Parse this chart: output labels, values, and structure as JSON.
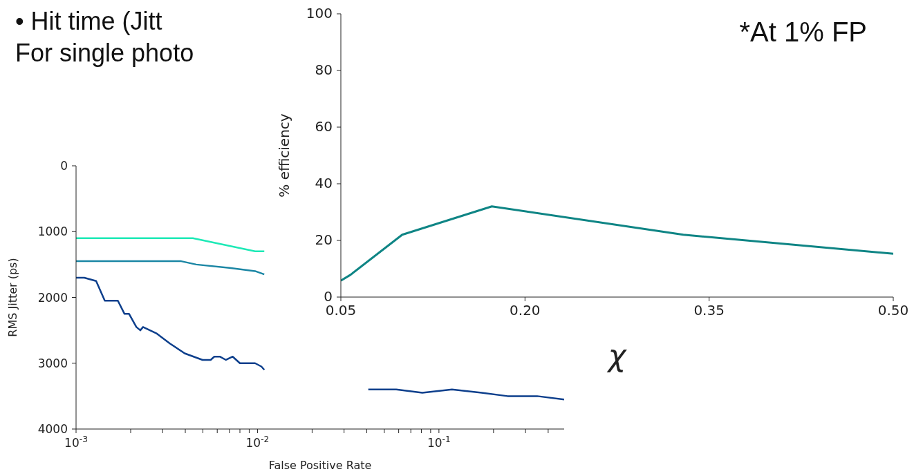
{
  "chart_data": [
    {
      "type": "other",
      "annotations": [
        "•  Hit time (Jitt",
        "For single photo"
      ]
    },
    {
      "type": "line",
      "xlabel": "False Positive Rate",
      "ylabel": "RMS Jitter (ps)",
      "log": "x",
      "line_style": "solid",
      "marker": "none",
      "xlim": [
        0.001,
        0.49
      ],
      "xticks": [
        {
          "value": 0.001,
          "label": "10$^{-3}$"
        },
        {
          "value": 0.002,
          "label": null
        },
        {
          "value": 0.003,
          "label": null
        },
        {
          "value": 0.004,
          "label": null
        },
        {
          "value": 0.005,
          "label": null
        },
        {
          "value": 0.006,
          "label": null
        },
        {
          "value": 0.007,
          "label": null
        },
        {
          "value": 0.008,
          "label": null
        },
        {
          "value": 0.009,
          "label": null
        },
        {
          "value": 0.01,
          "label": "10$^{-2}$"
        },
        {
          "value": 0.02,
          "label": null
        },
        {
          "value": 0.03,
          "label": null
        },
        {
          "value": 0.04,
          "label": null
        },
        {
          "value": 0.05,
          "label": null
        },
        {
          "value": 0.06,
          "label": null
        },
        {
          "value": 0.07,
          "label": null
        },
        {
          "value": 0.08,
          "label": null
        },
        {
          "value": 0.09,
          "label": null
        },
        {
          "value": 0.1,
          "label": "10$^{-1}$"
        },
        {
          "value": 0.2,
          "label": null
        },
        {
          "value": 0.3,
          "label": null
        },
        {
          "value": 0.4,
          "label": null
        }
      ],
      "ylim": [
        4000,
        0
      ],
      "yticks": [
        0,
        1000,
        2000,
        3000,
        4000
      ],
      "series": [
        {
          "color": "#1de9b6",
          "x": [
            0.001,
            0.0044,
            0.0097,
            0.0109
          ],
          "values": [
            1100,
            1100,
            1300,
            1300
          ]
        },
        {
          "color": "#1b86a4",
          "x": [
            0.001,
            0.0031,
            0.0038,
            0.0046,
            0.007,
            0.0097,
            0.0109
          ],
          "values": [
            1450,
            1450,
            1450,
            1500,
            1550,
            1600,
            1650
          ]
        },
        {
          "color": "#0d3f8c",
          "x": [
            0.001,
            0.00111,
            0.00129,
            0.00144,
            0.0017,
            0.00185,
            0.00196,
            0.00215,
            0.00226,
            0.00234,
            0.00279,
            0.00329,
            0.00397,
            0.00498,
            0.00552,
            0.00578,
            0.0062,
            0.0067,
            0.0073,
            0.008,
            0.0097,
            0.0105,
            0.0109,
            0.025,
            0.0408,
            0.0582,
            0.081,
            0.118,
            0.172,
            0.239,
            0.348,
            0.49
          ],
          "values": [
            1700,
            1700,
            1750,
            2050,
            2050,
            2250,
            2250,
            2450,
            2500,
            2450,
            2550,
            2700,
            2850,
            2950,
            2950,
            2900,
            2900,
            2950,
            2900,
            3000,
            3000,
            3050,
            3100,
            null,
            3400,
            3400,
            3450,
            3400,
            3450,
            3500,
            3500,
            3550
          ]
        }
      ]
    },
    {
      "type": "line",
      "xlabel": "χ",
      "ylabel": "% efficiency",
      "line_style": "solid",
      "marker": "none",
      "xlim": [
        0.05,
        0.5
      ],
      "xticks": [
        {
          "value": 0.05,
          "label": "0.05"
        },
        {
          "value": 0.2,
          "label": "0.20"
        },
        {
          "value": 0.35,
          "label": "0.35"
        },
        {
          "value": 0.5,
          "label": "0.50"
        }
      ],
      "ylim": [
        0,
        100
      ],
      "yticks": [
        0,
        20,
        40,
        60,
        80,
        100
      ],
      "annotations": [
        "*At 1% FP"
      ],
      "series": [
        {
          "color": "#0f8585",
          "x": [
            0.05,
            0.058,
            0.1,
            0.173,
            0.329,
            0.5
          ],
          "values": [
            5.8,
            7.9,
            22,
            32,
            22,
            15.3
          ]
        }
      ]
    }
  ]
}
